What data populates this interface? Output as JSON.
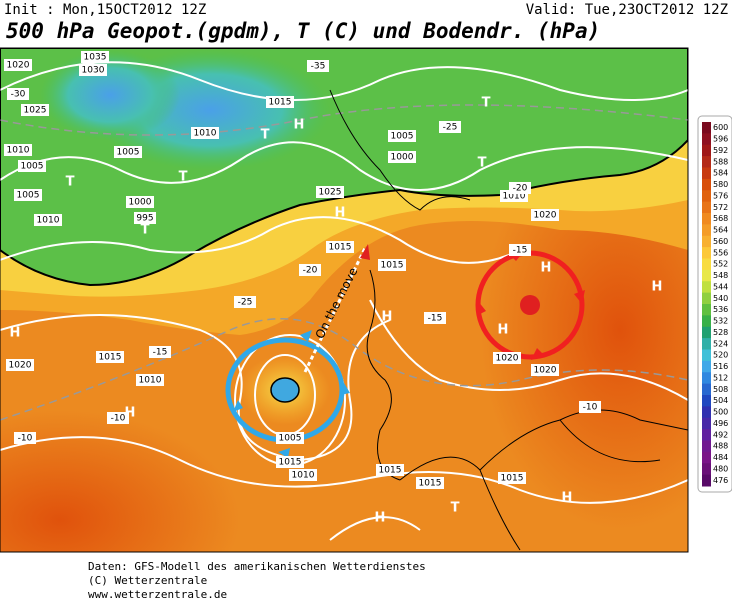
{
  "header": {
    "init": "Init : Mon,15OCT2012 12Z",
    "valid": "Valid: Tue,23OCT2012 12Z",
    "title": "500 hPa Geopot.(gpdm), T (C) und Bodendr. (hPa)"
  },
  "map": {
    "annotation": "On the move",
    "labels": [
      "1020",
      "1035",
      "1030",
      "1025",
      "1010",
      "1005",
      "T",
      "1005",
      "1010",
      "T",
      "995",
      "1000",
      "1005",
      "1010",
      "T",
      "H",
      "1015",
      "T",
      "1005",
      "1000",
      "T",
      "T",
      "1010",
      "1020",
      "H",
      "1025",
      "1015",
      "1015",
      "H",
      "H",
      "H",
      "1020",
      "1020",
      "H",
      "1020",
      "1015",
      "H",
      "1010",
      "1005",
      "1015",
      "1010",
      "1015",
      "1015",
      "1015",
      "H",
      "T",
      "H",
      "H",
      "-35",
      "-30",
      "-25",
      "-20",
      "-15",
      "-15",
      "-15",
      "-10",
      "-10",
      "-10",
      "-20",
      "-25"
    ]
  },
  "colorbar": {
    "ticks": [
      600,
      596,
      592,
      588,
      584,
      580,
      576,
      572,
      568,
      564,
      560,
      556,
      552,
      548,
      544,
      540,
      536,
      532,
      528,
      524,
      520,
      516,
      512,
      508,
      504,
      500,
      496,
      492,
      488,
      484,
      480,
      476
    ],
    "colors": [
      "#7a0a1e",
      "#8e1020",
      "#a01818",
      "#b42a18",
      "#c83a10",
      "#d84e0a",
      "#e0620e",
      "#e87418",
      "#f08a20",
      "#f49c28",
      "#f8b030",
      "#fcc838",
      "#f8dc40",
      "#e8e848",
      "#c0e040",
      "#90d040",
      "#60c040",
      "#38b048",
      "#20a070",
      "#30b0a8",
      "#40c0d8",
      "#40a8e8",
      "#3088e0",
      "#2868d0",
      "#2048c0",
      "#3030b0",
      "#4828a8",
      "#6020a0",
      "#701890",
      "#7a1488",
      "#6a1078",
      "#580a68"
    ]
  },
  "footer": [
    "Daten: GFS-Modell des amerikanischen Wetterdienstes",
    "(C) Wetterzentrale",
    "www.wetterzentrale.de"
  ]
}
